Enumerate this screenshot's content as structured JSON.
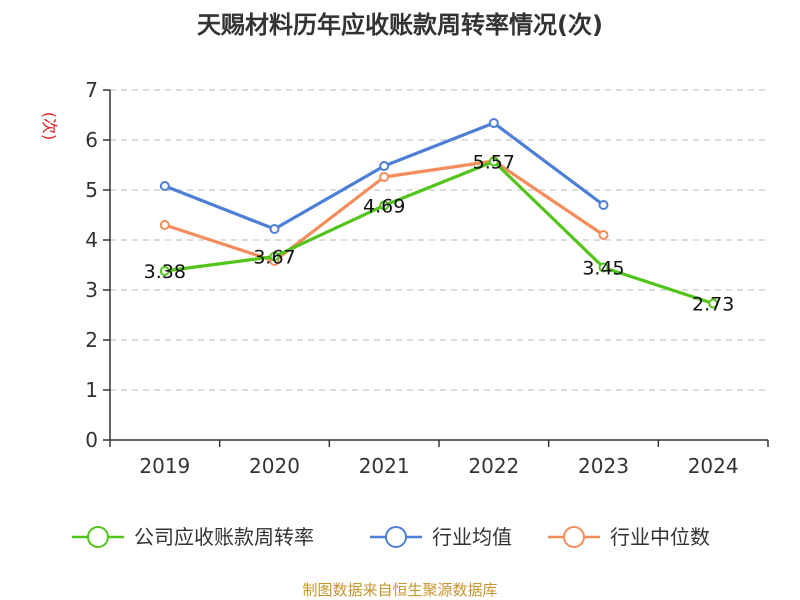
{
  "chart_data": {
    "type": "line",
    "title": "天赐材料历年应收账款周转率情况(次)",
    "ylabel": "(次)",
    "xlabel": "",
    "categories": [
      "2019",
      "2020",
      "2021",
      "2022",
      "2023",
      "2024"
    ],
    "ylim": [
      0,
      7
    ],
    "yticks": [
      0,
      1,
      2,
      3,
      4,
      5,
      6,
      7
    ],
    "grid": true,
    "legend_position": "bottom",
    "series": [
      {
        "name": "公司应收账款周转率",
        "color": "#52c41a",
        "values": [
          3.38,
          3.67,
          4.69,
          5.57,
          3.45,
          2.73
        ],
        "labels": [
          "3.38",
          "3.67",
          "4.69",
          "5.57",
          "3.45",
          "2.73"
        ]
      },
      {
        "name": "行业均值",
        "color": "#4e7fd6",
        "values": [
          5.08,
          4.22,
          5.48,
          6.34,
          4.7,
          null
        ]
      },
      {
        "name": "行业中位数",
        "color": "#f48c5b",
        "values": [
          4.3,
          3.58,
          5.26,
          5.58,
          4.1,
          null
        ]
      }
    ],
    "source": "制图数据来自恒生聚源数据库"
  },
  "colors": {
    "unit_label": "#e02020",
    "source_text": "#c8952c",
    "axis": "#333333",
    "grid": "#c8c8c8"
  }
}
